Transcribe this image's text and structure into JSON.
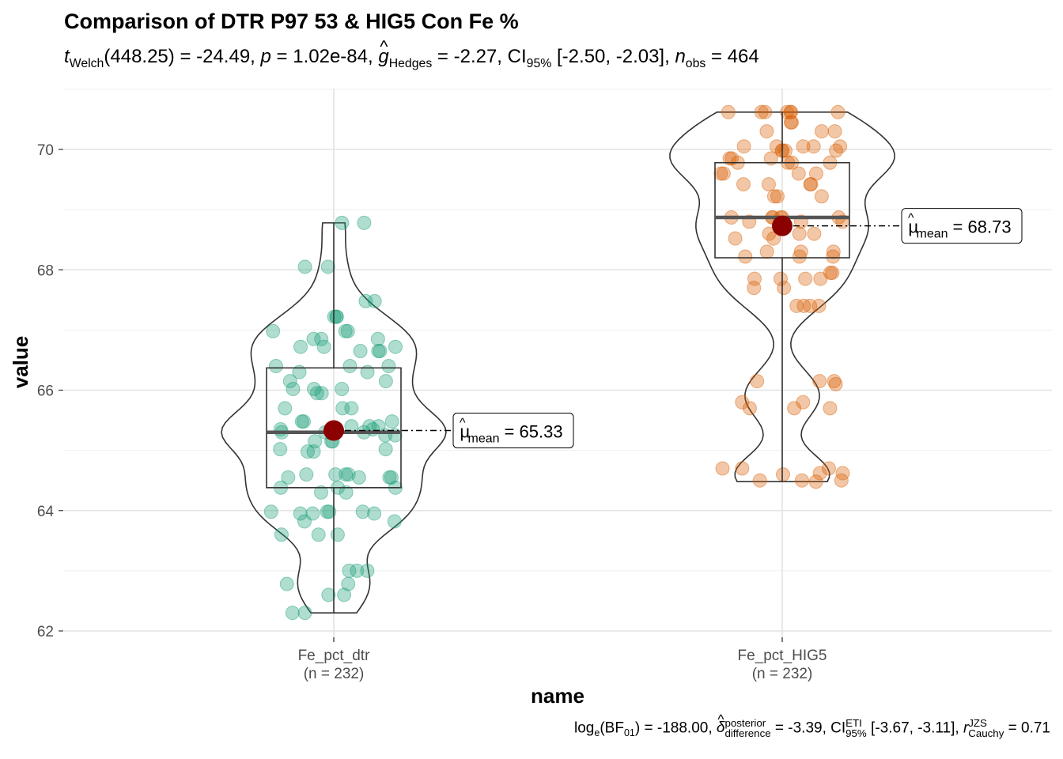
{
  "title": "Comparison of DTR P97 53 & HIG5 Con Fe %",
  "subtitle": {
    "t_label": "t",
    "t_sub": "Welch",
    "df": "(448.25)",
    "t_value": "= -24.49,",
    "p_label": "p",
    "p_value": "= 1.02e-84,",
    "g_label": "g",
    "g_sub": "Hedges",
    "g_value": "= -2.27,",
    "ci_label": "CI",
    "ci_sub": "95%",
    "ci_value": "[-2.50, -2.03],",
    "n_label": "n",
    "n_sub": "obs",
    "n_value": "= 464"
  },
  "caption": {
    "log_label": "log",
    "log_sub": "e",
    "bf_open": "(BF",
    "bf_sub": "01",
    "bf_close": ")",
    "bf_value": "= -188.00,",
    "delta_label": "δ",
    "delta_sup": "posterior",
    "delta_sub": "difference",
    "delta_value": "= -3.39,",
    "ci_label": "CI",
    "ci_sup": "ETI",
    "ci_sub": "95%",
    "ci_value": "[-3.67, -3.11],",
    "r_label": "r",
    "r_sup": "JZS",
    "r_sub": "Cauchy",
    "r_value": "= 0.71"
  },
  "chart_data": {
    "type": "violin-box-scatter",
    "xlabel": "name",
    "ylabel": "value",
    "ylim": [
      61.8,
      71.0
    ],
    "yticks": [
      "62",
      "64",
      "66",
      "68",
      "70"
    ],
    "ytick_values": [
      62,
      64,
      66,
      68,
      70
    ],
    "grid": true,
    "groups": [
      {
        "name": "Fe_pct_dtr",
        "n_label": "(n = 232)",
        "color": "#1B9E77",
        "mean": 65.33,
        "mean_label_prefix": "μ",
        "mean_label_sub": "mean",
        "mean_label_value": "= 65.33",
        "box": {
          "q1": 64.38,
          "median": 65.3,
          "q3": 66.37,
          "whisker_low": 62.3,
          "whisker_high": 68.78
        },
        "points": [
          68.78,
          68.78,
          68.05,
          68.05,
          67.48,
          67.48,
          67.22,
          67.22,
          67.22,
          66.98,
          66.98,
          66.98,
          66.85,
          66.85,
          66.85,
          66.72,
          66.72,
          66.72,
          66.65,
          66.65,
          66.65,
          66.4,
          66.4,
          66.4,
          66.3,
          66.3,
          66.15,
          66.15,
          66.02,
          66.02,
          66.02,
          65.95,
          65.95,
          65.7,
          65.7,
          65.7,
          65.48,
          65.48,
          65.48,
          65.4,
          65.4,
          65.4,
          65.35,
          65.35,
          65.35,
          65.3,
          65.3,
          65.3,
          65.25,
          65.25,
          65.15,
          65.15,
          65.15,
          65.02,
          65.02,
          64.98,
          64.98,
          64.6,
          64.6,
          64.6,
          64.6,
          64.55,
          64.55,
          64.55,
          64.55,
          64.38,
          64.38,
          64.38,
          64.3,
          64.3,
          63.98,
          63.98,
          63.98,
          63.98,
          63.95,
          63.95,
          63.95,
          63.82,
          63.82,
          63.6,
          63.6,
          63.6,
          63.0,
          63.0,
          63.0,
          62.78,
          62.78,
          62.6,
          62.6,
          62.3,
          62.3
        ]
      },
      {
        "name": "Fe_pct_HIG5",
        "n_label": "(n = 232)",
        "color": "#D95F02",
        "mean": 68.73,
        "mean_label_prefix": "μ",
        "mean_label_sub": "mean",
        "mean_label_value": "= 68.73",
        "box": {
          "q1": 68.2,
          "median": 68.87,
          "q3": 69.78,
          "whisker_low": 64.48,
          "whisker_high": 70.62
        },
        "points": [
          70.62,
          70.62,
          70.62,
          70.62,
          70.62,
          70.62,
          70.62,
          70.45,
          70.45,
          70.3,
          70.3,
          70.3,
          70.05,
          70.05,
          70.05,
          70.05,
          70.05,
          69.98,
          69.98,
          69.98,
          69.98,
          69.85,
          69.85,
          69.85,
          69.78,
          69.78,
          69.78,
          69.78,
          69.6,
          69.6,
          69.6,
          69.6,
          69.42,
          69.42,
          69.42,
          69.42,
          69.22,
          69.22,
          69.22,
          68.87,
          68.87,
          68.87,
          68.87,
          68.87,
          68.87,
          68.8,
          68.8,
          68.8,
          68.6,
          68.6,
          68.6,
          68.52,
          68.52,
          68.3,
          68.3,
          68.3,
          68.22,
          68.22,
          68.22,
          67.95,
          67.95,
          67.85,
          67.85,
          67.85,
          67.85,
          67.7,
          67.7,
          67.4,
          67.4,
          67.4,
          67.4,
          66.15,
          66.15,
          66.15,
          66.1,
          65.8,
          65.8,
          65.7,
          65.7,
          65.7,
          64.7,
          64.7,
          64.7,
          64.62,
          64.62,
          64.6,
          64.5,
          64.5,
          64.5,
          64.48
        ]
      }
    ]
  }
}
